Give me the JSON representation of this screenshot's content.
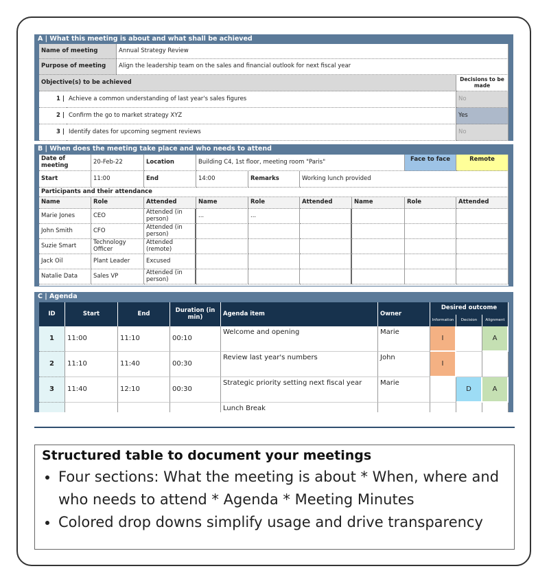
{
  "section_a": {
    "title": "A | What this meeting is about and what shall be achieved",
    "name_label": "Name of meeting",
    "name_value": "Annual Strategy Review",
    "purpose_label": "Purpose of meeting",
    "purpose_value": "Align the leadership team on the sales and financial outlook for next fiscal year",
    "objectives_label": "Objective(s) to be achieved",
    "decisions_label": "Decisions to be made",
    "objectives": [
      {
        "number": "1 |",
        "text": "Achieve a common understanding of last year's sales figures",
        "decision": "No"
      },
      {
        "number": "2 |",
        "text": "Confirm the go to market strategy XYZ",
        "decision": "Yes"
      },
      {
        "number": "3 |",
        "text": "Identify dates for upcoming segment reviews",
        "decision": "No"
      }
    ]
  },
  "section_b": {
    "title": "B | When does the meeting take place and who needs to attend",
    "date_label": "Date of meeting",
    "date_value": "20-Feb-22",
    "location_label": "Location",
    "location_value": "Building C4, 1st floor, meeting room \"Paris\"",
    "face_to_face": "Face to face",
    "remote": "Remote",
    "start_label": "Start",
    "start_value": "11:00",
    "end_label": "End",
    "end_value": "14:00",
    "remarks_label": "Remarks",
    "remarks_value": "Working lunch provided",
    "participants_label": "Participants and their attendance",
    "column_headers": [
      "Name",
      "Role",
      "Attended"
    ],
    "participants": [
      [
        "Marie Jones",
        "CEO",
        "Attended (in person)"
      ],
      [
        "John Smith",
        "CFO",
        "Attended (in person)"
      ],
      [
        "Suzie Smart",
        "Technology Officer",
        "Attended (remote)"
      ],
      [
        "Jack Oil",
        "Plant Leader",
        "Excused"
      ],
      [
        "Natalie Data",
        "Sales VP",
        "Attended (in person)"
      ]
    ],
    "more_participants": [
      "...",
      "..."
    ]
  },
  "section_c": {
    "title": "C | Agenda",
    "headers": {
      "id": "ID",
      "start": "Start",
      "end": "End",
      "duration": "Duration (in min)",
      "item": "Agenda item",
      "owner": "Owner",
      "outcome": "Desired outcome",
      "information": "Information",
      "decision": "Decision",
      "alignment": "Alignment"
    },
    "rows": [
      {
        "id": 1,
        "start": "11:00",
        "end": "11:10",
        "duration": "00:10",
        "item": "Welcome and opening",
        "owner": "Marie",
        "information": "I",
        "alignment": "A"
      },
      {
        "id": 2,
        "start": "11:10",
        "end": "11:40",
        "duration": "00:30",
        "item": "Review last year's numbers",
        "owner": "John",
        "information": "I"
      },
      {
        "id": 3,
        "start": "11:40",
        "end": "12:10",
        "duration": "00:30",
        "item": "Strategic priority setting next fiscal year",
        "owner": "Marie",
        "decision": "D",
        "alignment": "A"
      },
      {
        "item": "Lunch Break"
      }
    ]
  },
  "caption": {
    "title": "Structured table to document your meetings",
    "bullets": [
      "Four sections: What the meeting is about * When, where and who needs to attend * Agenda * Meeting Minutes",
      "Colored drop downs simplify usage and drive transparency"
    ]
  }
}
